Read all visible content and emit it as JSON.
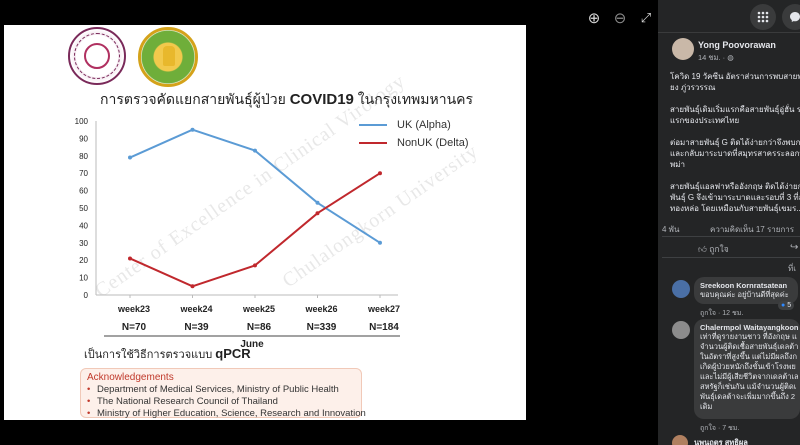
{
  "viewer": {
    "zoom_in_icon": "zoom-in-icon",
    "zoom_out_icon": "zoom-out-icon",
    "fullscreen_icon": "fullscreen-icon",
    "zoom_in_glyph": "⊕",
    "zoom_out_glyph": "⊖",
    "fullscreen_glyph": "⤢"
  },
  "slide": {
    "title_thai": "การตรวจคัดแยกสายพันธุ์ผู้ป่วย",
    "title_bold": "COVID19",
    "title_tail": "ในกรุงเทพมหานคร",
    "watermark_1": "Center of Excellence in Clinical Virology",
    "watermark_2": "Chulalongkorn University",
    "note_prefix": "เป็นการใช้วิธีการตรวจแบบ",
    "note_method": "qPCR",
    "ack_title": "Acknowledgements",
    "ack_items": [
      "Department of Medical Services, Ministry of Public Health",
      "The National Research Council of Thailand",
      "Ministry of Higher Education, Science, Research and Innovation"
    ],
    "month_label": "June"
  },
  "chart_data": {
    "type": "line",
    "categories": [
      "week23",
      "week24",
      "week25",
      "week26",
      "week27"
    ],
    "sample_sizes": [
      "N=70",
      "N=39",
      "N=86",
      "N=339",
      "N=184"
    ],
    "series": [
      {
        "name": "UK (Alpha)",
        "color": "#5b9bd5",
        "values": [
          79,
          95,
          83,
          53,
          30
        ]
      },
      {
        "name": "NonUK (Delta)",
        "color": "#c0282d",
        "values": [
          21,
          5,
          17,
          47,
          70
        ]
      }
    ],
    "ylim": [
      0,
      100
    ],
    "yticks": [
      0,
      10,
      20,
      30,
      40,
      50,
      60,
      70,
      80,
      90,
      100
    ],
    "xlabel": "June",
    "legend_position": "top-right",
    "grid": false
  },
  "fb": {
    "author": "Yong Poovorawan",
    "meta": "14 ชม. · ",
    "post_lines": [
      "โควิด 19 วัคซีน อัตราส่วนการพบสายพ",
      "ยง ภู่วรวรรณ",
      "",
      "สายพันธุ์เดิมเริ่มแรกคือสายพันธุ์อู่ฮั่น ร",
      "แรกของประเทศไทย",
      "",
      "ต่อมาสายพันธุ์ G ติดได้ง่ายกว่าจึงพบก",
      "และกลับมาระบาดที่สมุทรสาครระลอกที่",
      "พม่า",
      "",
      "สายพันธุ์แอลฟาหรืออังกฤษ ติดได้ง่ายก",
      "พันธุ์ G จึงเข้ามาระบาดและรอบที่ 3 ที่ส",
      "ทองหล่อ โดยเหมือนกับสายพันธุ์เขมร..."
    ],
    "shares": "4 พัน",
    "comments_count": "ความคิดเห็น 17 รายการ",
    "like_label": "ถูกใจ",
    "more_label": "ที่เ",
    "comment1_name": "Sreekoon Kornratsatean",
    "comment1_text": "ขอบคุณค่ะ อยู่บ้านดีที่สุดค่ะ",
    "comment1_actions": "ถูกใจ · 12 ชม.",
    "comment1_react_count": "5",
    "comment2_name": "Chalermpol Waitayangkoon",
    "comment2_lines": [
      "เท่าที่ดูรายงานชาว ที่อังกฤษ แ",
      "จำนวนผู้ติดเชื้อสายพันธุ์เดลต้า",
      "ในอัตราที่สูงขึ้น แต่ไม่มีผลถึงก",
      "เกิดผู้ป่วยหนักถึงขั้นเข้าโรงพย",
      "และไม่มีผู้เสียชีวิตจากเดลต้าเล",
      "สหรัฐก็เช่นกัน แม้จำนวนผู้ติดเ",
      "พันธุ์เดลต้าจะเพิ่มมากขึ้นถึง 2",
      "เดิม"
    ],
    "comment2_actions": "ถูกใจ · 7 ชม.",
    "comment3_name": "นพนฤตร สุทธิผล"
  }
}
